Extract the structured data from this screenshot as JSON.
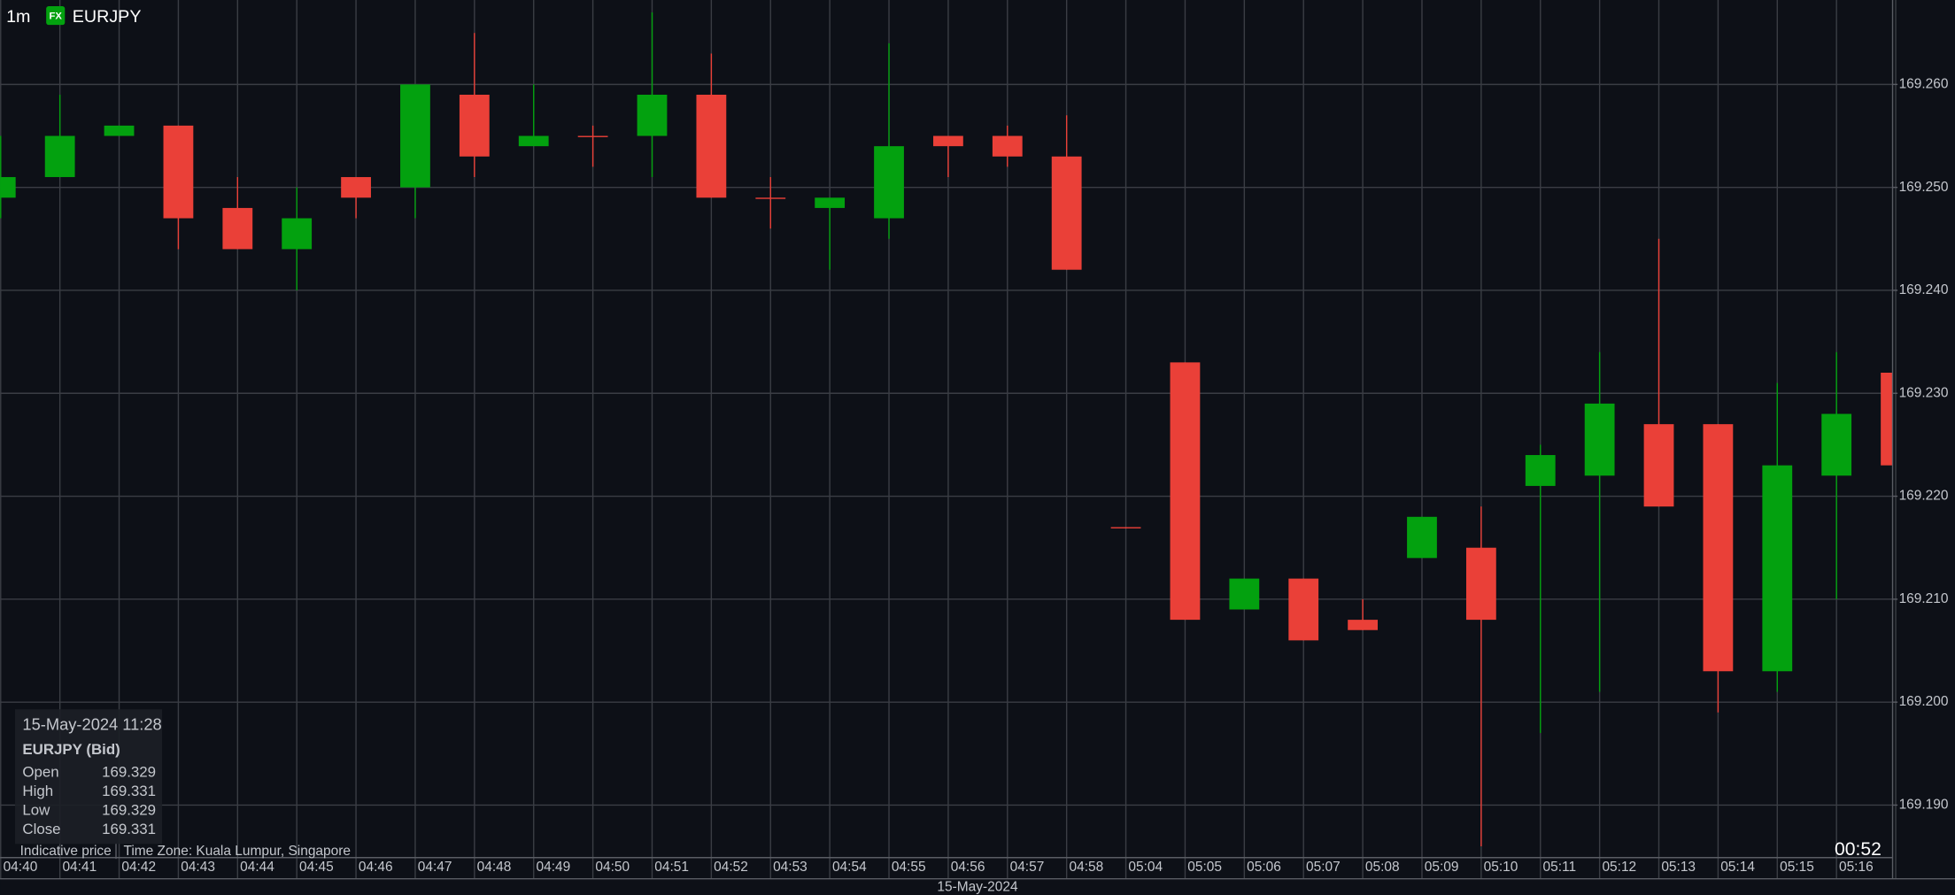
{
  "header": {
    "interval": "1m",
    "badge": "FX",
    "symbol": "EURJPY"
  },
  "chart_data": {
    "type": "candlestick",
    "categories": [
      "04:40",
      "04:41",
      "04:42",
      "04:43",
      "04:44",
      "04:45",
      "04:46",
      "04:47",
      "04:48",
      "04:49",
      "04:50",
      "04:51",
      "04:52",
      "04:53",
      "04:54",
      "04:55",
      "04:56",
      "04:57",
      "04:58",
      "05:04",
      "05:05",
      "05:06",
      "05:07",
      "05:08",
      "05:09",
      "05:10",
      "05:11",
      "05:12",
      "05:13",
      "05:14",
      "05:15",
      "05:16",
      null
    ],
    "open": [
      169.249,
      169.251,
      169.255,
      169.256,
      169.248,
      169.244,
      169.251,
      169.25,
      169.259,
      169.254,
      169.255,
      169.255,
      169.259,
      169.249,
      169.248,
      169.247,
      169.255,
      169.255,
      169.253,
      169.217,
      169.233,
      169.209,
      169.212,
      169.208,
      169.214,
      169.215,
      169.221,
      169.222,
      169.227,
      169.227,
      169.203,
      169.222,
      169.232
    ],
    "high": [
      169.255,
      169.259,
      169.256,
      169.256,
      169.251,
      169.25,
      169.251,
      169.26,
      169.265,
      169.26,
      169.256,
      169.267,
      169.263,
      169.251,
      169.249,
      169.264,
      169.255,
      169.256,
      169.257,
      169.217,
      169.233,
      169.212,
      169.212,
      169.21,
      169.218,
      169.219,
      169.225,
      169.234,
      169.245,
      169.227,
      169.231,
      169.234,
      169.232
    ],
    "low": [
      169.247,
      169.251,
      169.255,
      169.244,
      169.244,
      169.24,
      169.247,
      169.247,
      169.251,
      169.254,
      169.252,
      169.251,
      169.249,
      169.246,
      169.242,
      169.245,
      169.251,
      169.252,
      169.242,
      169.217,
      169.208,
      169.209,
      169.206,
      169.207,
      169.214,
      169.186,
      169.197,
      169.201,
      169.219,
      169.199,
      169.201,
      169.21,
      169.223
    ],
    "close": [
      169.251,
      169.255,
      169.256,
      169.247,
      169.244,
      169.247,
      169.249,
      169.26,
      169.253,
      169.255,
      169.255,
      169.259,
      169.249,
      169.249,
      169.249,
      169.254,
      169.254,
      169.253,
      169.242,
      169.217,
      169.208,
      169.212,
      169.206,
      169.207,
      169.218,
      169.208,
      169.224,
      169.229,
      169.219,
      169.203,
      169.223,
      169.228,
      169.223
    ],
    "up_color": "#03a10f",
    "down_color": "#ea4038",
    "ylim": [
      169.1849,
      169.2682
    ],
    "yticks": [
      {
        "value": 169.19,
        "label": "169.190"
      },
      {
        "value": 169.2,
        "label": "169.200"
      },
      {
        "value": 169.21,
        "label": "169.210"
      },
      {
        "value": 169.22,
        "label": "169.220"
      },
      {
        "value": 169.23,
        "label": "169.230"
      },
      {
        "value": 169.24,
        "label": "169.240"
      },
      {
        "value": 169.25,
        "label": "169.250"
      },
      {
        "value": 169.26,
        "label": "169.260"
      }
    ],
    "grid": true,
    "date_label": "15-May-2024"
  },
  "info_box": {
    "datetime": "15-May-2024 11:28",
    "title": "EURJPY (Bid)",
    "rows": [
      {
        "label": "Open",
        "value": 169.329
      },
      {
        "label": "High",
        "value": 169.331
      },
      {
        "label": "Low",
        "value": 169.329
      },
      {
        "label": "Close",
        "value": 169.331
      }
    ]
  },
  "footer": {
    "note": "Indicative price",
    "timezone": "Time Zone: Kuala Lumpur, Singapore",
    "countdown": "00:52"
  }
}
